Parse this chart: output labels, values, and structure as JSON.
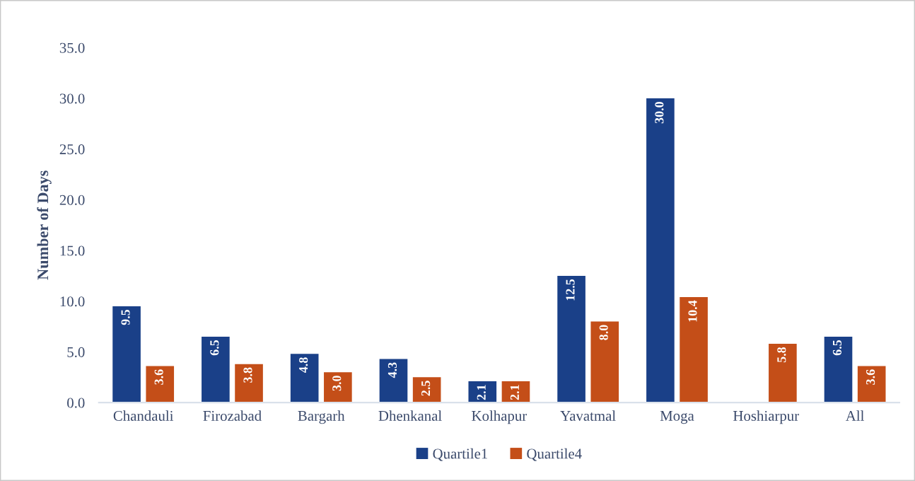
{
  "chart_data": {
    "type": "bar",
    "ylabel": "Number of Days",
    "categories": [
      "Chandauli",
      "Firozabad",
      "Bargarh",
      "Dhenkanal",
      "Kolhapur",
      "Yavatmal",
      "Moga",
      "Hoshiarpur",
      "All"
    ],
    "series": [
      {
        "name": "Quartile1",
        "color": "#1a4088",
        "values": [
          9.5,
          6.5,
          4.8,
          4.3,
          2.1,
          12.5,
          30.0,
          0.0,
          6.5
        ],
        "value_labels": [
          "9.5",
          "6.5",
          "4.8",
          "4.3",
          "2.1",
          "12.5",
          "30.0",
          null,
          "6.5"
        ]
      },
      {
        "name": "Quartile4",
        "color": "#c44e18",
        "values": [
          3.6,
          3.8,
          3.0,
          2.5,
          2.1,
          8.0,
          10.4,
          5.8,
          3.6
        ],
        "value_labels": [
          "3.6",
          "3.8",
          "3.0",
          "2.5",
          "2.1",
          "8.0",
          "10.4",
          "5.8",
          "3.6"
        ]
      }
    ],
    "ylim": [
      0,
      35
    ],
    "yticks": [
      {
        "value": 0,
        "label": "0.0"
      },
      {
        "value": 5,
        "label": "5.0"
      },
      {
        "value": 10,
        "label": "10.0"
      },
      {
        "value": 15,
        "label": "15.0"
      },
      {
        "value": 20,
        "label": "20.0"
      },
      {
        "value": 25,
        "label": "25.0"
      },
      {
        "value": 30,
        "label": "30.0"
      },
      {
        "value": 35,
        "label": "35.0"
      }
    ],
    "grid": false,
    "legend": "bottom"
  }
}
